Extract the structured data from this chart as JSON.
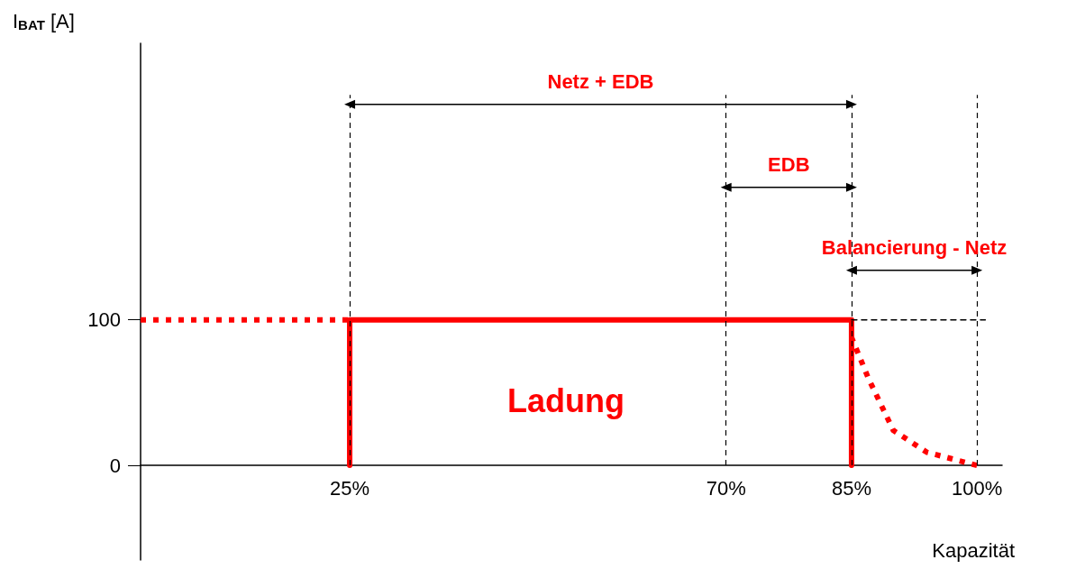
{
  "chart_data": {
    "type": "line",
    "ylabel": "I$_{BAT}$ [A]",
    "xlabel": "Kapazität",
    "xlim": [
      0,
      103
    ],
    "ylim": [
      -65,
      290
    ],
    "xticks": [
      {
        "value": 25,
        "label": "25%"
      },
      {
        "value": 70,
        "label": "70%"
      },
      {
        "value": 85,
        "label": "85%"
      },
      {
        "value": 100,
        "label": "100%"
      }
    ],
    "yticks": [
      0,
      100
    ],
    "series": [
      {
        "color": "#ff0000",
        "line_style": "dotted",
        "x": [
          0,
          25
        ],
        "values": [
          100,
          100
        ]
      },
      {
        "color": "#ff0000",
        "line_style": "solid",
        "x": [
          25,
          25,
          85,
          85
        ],
        "values": [
          0,
          100,
          100,
          0
        ]
      },
      {
        "color": "#ff0000",
        "line_style": "dotted",
        "x": [
          100,
          94,
          90,
          87,
          85
        ],
        "values": [
          0,
          9,
          24,
          60,
          88
        ]
      },
      {
        "color": "#000000",
        "line_style": "dashed",
        "x": [
          85,
          101
        ],
        "values": [
          100,
          100
        ]
      },
      {
        "name": "Netz + EDB",
        "color": "#000000",
        "line_style": "solid",
        "marker": "triangle",
        "x": [
          25,
          85
        ],
        "values": [
          248,
          248
        ]
      },
      {
        "name": "EDB",
        "color": "#000000",
        "line_style": "solid",
        "marker": "triangle",
        "x": [
          70,
          85
        ],
        "values": [
          191,
          191
        ]
      },
      {
        "name": "Balancierung - Netz",
        "color": "#000000",
        "line_style": "solid",
        "marker": "triangle",
        "x": [
          85,
          100
        ],
        "values": [
          134,
          134
        ]
      }
    ],
    "ref_lines": [
      {
        "axis": "x",
        "value": 25,
        "line_style": "dashed",
        "color": "#000000"
      },
      {
        "axis": "x",
        "value": 70,
        "line_style": "dashed",
        "color": "#000000"
      },
      {
        "axis": "x",
        "value": 85,
        "line_style": "dashed",
        "color": "#000000"
      },
      {
        "axis": "x",
        "value": 100,
        "line_style": "dashed",
        "color": "#000000"
      }
    ],
    "annotations": [
      "Ladung"
    ],
    "grid": false,
    "legend": false,
    "marker": "none"
  }
}
